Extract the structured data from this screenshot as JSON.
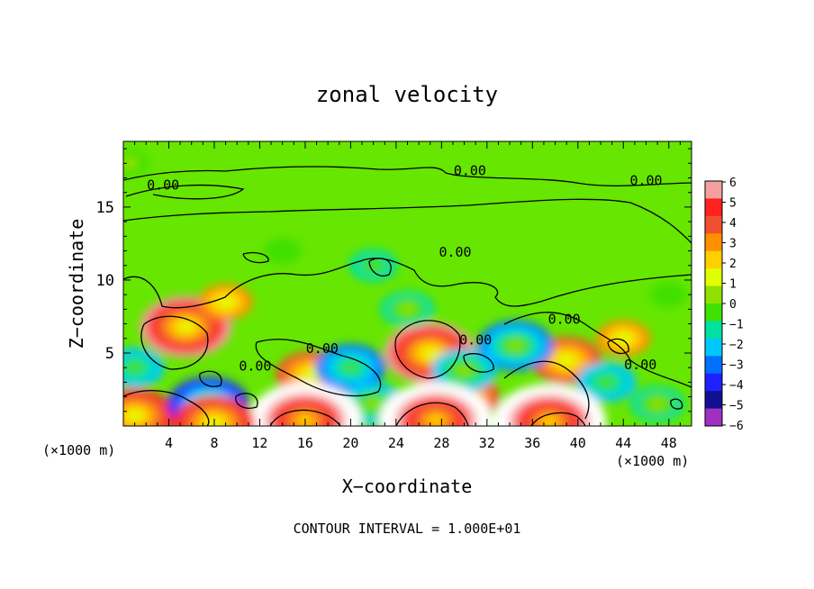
{
  "chart_data": {
    "type": "heatmap",
    "title": "zonal velocity",
    "xlabel": "X−coordinate",
    "ylabel": "Z−coordinate",
    "x_unit_label": "(×1000 m)",
    "z_unit_label": "(×1000 m)",
    "footer": "CONTOUR INTERVAL = 1.000E+01",
    "xlim": [
      0,
      50
    ],
    "ylim": [
      0,
      19.5
    ],
    "x_ticks": [
      "4",
      "8",
      "12",
      "16",
      "20",
      "24",
      "28",
      "32",
      "36",
      "40",
      "44",
      "48"
    ],
    "x_tick_values": [
      4,
      8,
      12,
      16,
      20,
      24,
      28,
      32,
      36,
      40,
      44,
      48
    ],
    "y_ticks": [
      "5",
      "10",
      "15"
    ],
    "y_tick_values": [
      5,
      10,
      15
    ],
    "colorbar": {
      "ticks": [
        "6",
        "5",
        "4",
        "3",
        "2",
        "1",
        "0",
        "−1",
        "−2",
        "−3",
        "−4",
        "−5",
        "−6"
      ],
      "tick_values": [
        6,
        5,
        4,
        3,
        2,
        1,
        0,
        -1,
        -2,
        -3,
        -4,
        -5,
        -6
      ],
      "colors": [
        "#f4a0a0",
        "#ff2020",
        "#f05030",
        "#ff9000",
        "#ffd000",
        "#e0ff00",
        "#90e000",
        "#40e000",
        "#00e0a0",
        "#00c8ff",
        "#0070ff",
        "#2020ff",
        "#101090",
        "#a030c0"
      ]
    },
    "contour_labels": [
      {
        "text": "0.00",
        "x": 3.5,
        "z": 16.2
      },
      {
        "text": "0.00",
        "x": 30.5,
        "z": 17.2
      },
      {
        "text": "0.00",
        "x": 46.0,
        "z": 16.5
      },
      {
        "text": "0.00",
        "x": 29.2,
        "z": 11.6
      },
      {
        "text": "0.00",
        "x": 17.5,
        "z": 5.0
      },
      {
        "text": "0.00",
        "x": 11.6,
        "z": 3.8
      },
      {
        "text": "0.00",
        "x": 31.0,
        "z": 5.6
      },
      {
        "text": "0.00",
        "x": 38.8,
        "z": 7.0
      },
      {
        "text": "0.00",
        "x": 45.5,
        "z": 3.9
      }
    ],
    "field_features": [
      {
        "x": 5.5,
        "z": 6.8,
        "v": 6
      },
      {
        "x": 27.0,
        "z": 5.0,
        "v": 6
      },
      {
        "x": 16.5,
        "z": 3.5,
        "v": 4
      },
      {
        "x": 30.0,
        "z": 2.0,
        "v": 4
      },
      {
        "x": 39.0,
        "z": 4.5,
        "v": 4
      },
      {
        "x": 1.0,
        "z": 0.7,
        "v": 5
      },
      {
        "x": 9.0,
        "z": 8.5,
        "v": 2.5
      },
      {
        "x": 44.0,
        "z": 6.0,
        "v": 2.5
      },
      {
        "x": 7.5,
        "z": 1.5,
        "v": -5
      },
      {
        "x": 20.0,
        "z": 4.0,
        "v": -4
      },
      {
        "x": 34.5,
        "z": 5.5,
        "v": -4.5
      },
      {
        "x": 17.0,
        "z": 0.6,
        "v": -4
      },
      {
        "x": 22.0,
        "z": 1.5,
        "v": -3.5
      },
      {
        "x": 36.0,
        "z": 0.8,
        "v": -4
      },
      {
        "x": 1.0,
        "z": 4.0,
        "v": -3
      },
      {
        "x": 42.5,
        "z": 3.0,
        "v": -3
      },
      {
        "x": 47.0,
        "z": 1.5,
        "v": -2.5
      },
      {
        "x": 22.0,
        "z": 11.0,
        "v": -2
      },
      {
        "x": 25.0,
        "z": 8.0,
        "v": -2.5
      },
      {
        "x": 30.0,
        "z": 3.8,
        "v": -3.5
      },
      {
        "x": 16.0,
        "z": 0.4,
        "v": 8
      },
      {
        "x": 27.5,
        "z": 0.4,
        "v": 8
      },
      {
        "x": 37.5,
        "z": 0.3,
        "v": 8
      },
      {
        "x": 8.0,
        "z": 0.2,
        "v": 5
      },
      {
        "x": 0.5,
        "z": 18.0,
        "v": -1.2
      },
      {
        "x": 14.0,
        "z": 12.0,
        "v": -1
      },
      {
        "x": 48.0,
        "z": 9.0,
        "v": -1
      }
    ]
  }
}
